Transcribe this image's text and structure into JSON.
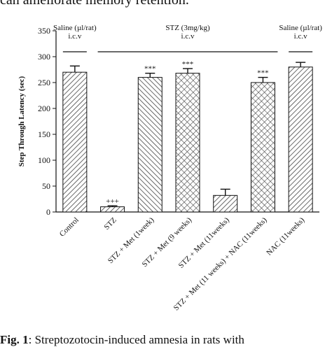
{
  "header_text": "can ameliorate memory retention.",
  "caption": {
    "label": "Fig. 1",
    "text": ": Streptozotocin-induced amnesia in rats with"
  },
  "chart_data": {
    "type": "bar",
    "ylabel": "Step Through Latency (sec)",
    "ylim": [
      0,
      350
    ],
    "yticks": [
      0,
      50,
      100,
      150,
      200,
      250,
      300,
      350
    ],
    "grid": false,
    "categories": [
      "Control",
      "STZ",
      "STZ + Met (1week)",
      "STZ + Met (9 weeks)",
      "STZ + Met (11weeks)",
      "STZ + Met (11 weeks) + NAC (11weeks)",
      "NAC (11weeks)"
    ],
    "values": [
      270,
      10,
      260,
      268,
      32,
      250,
      280
    ],
    "errors": [
      12,
      2,
      8,
      9,
      12,
      10,
      9
    ],
    "patterns": [
      "diag-right",
      "diag-right",
      "diag-left",
      "crosshatch",
      "diag-right",
      "crosshatch",
      "diag-right"
    ],
    "significance": [
      "",
      "+++",
      "***",
      "***",
      "",
      "***",
      ""
    ],
    "group_labels": [
      {
        "line1": "Saline (µl/rat)",
        "line2": "i.c.v",
        "from": 0,
        "to": 0
      },
      {
        "line1": "STZ (3mg/kg)",
        "line2": "i.c.v",
        "from": 1,
        "to": 5
      },
      {
        "line1": "Saline (µl/rat)",
        "line2": "i.c.v",
        "from": 6,
        "to": 6
      }
    ]
  }
}
